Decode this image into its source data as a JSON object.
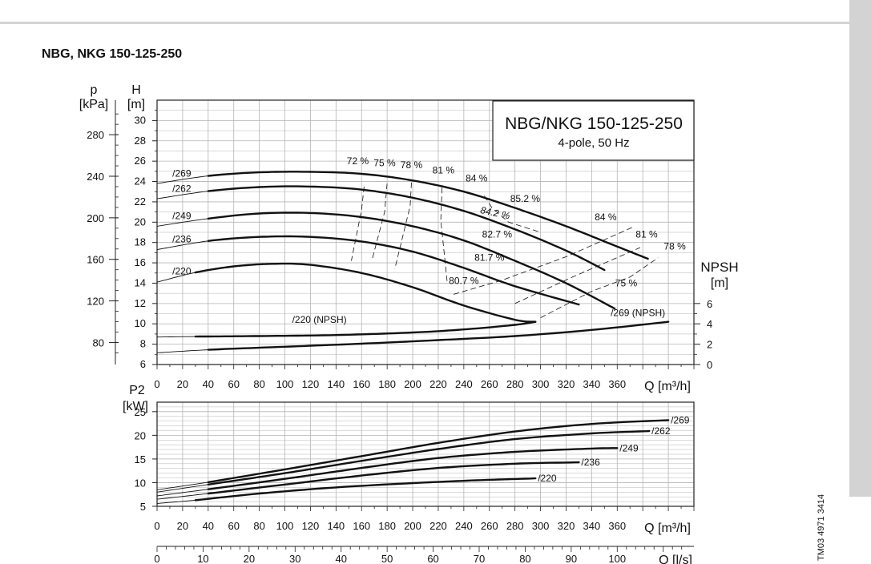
{
  "page": {
    "title": "NBG, NKG 150-125-250",
    "doc_code": "TM03 4971 3414",
    "box_title": "NBG/NKG 150-125-250",
    "box_subtitle": "4-pole, 50 Hz"
  },
  "colors": {
    "curve": "#111111",
    "grid": "#b5b5b5",
    "frame": "#222222",
    "background": "#ffffff",
    "chrome": "#d3d3d3"
  },
  "chart_data": [
    {
      "id": "head",
      "type": "line",
      "xlabel": "Q [m³/h]",
      "xlim": [
        0,
        420
      ],
      "x_ticks": [
        0,
        20,
        40,
        60,
        80,
        100,
        120,
        140,
        160,
        180,
        200,
        220,
        240,
        260,
        280,
        300,
        320,
        340,
        360
      ],
      "ylabel": "H",
      "ylabel_unit": "[m]",
      "ylim": [
        6,
        32
      ],
      "y_ticks": [
        6,
        8,
        10,
        12,
        14,
        16,
        18,
        20,
        22,
        24,
        26,
        28,
        30
      ],
      "p_axis": {
        "label": "p",
        "unit": "[kPa]",
        "ticks": [
          80,
          120,
          160,
          200,
          240,
          280
        ],
        "kpa_per_m": 9.79
      },
      "npsh_axis": {
        "label": "NPSH",
        "unit": "[m]",
        "ticks": [
          0,
          2,
          4,
          6
        ],
        "offset_m": 6
      },
      "grid": true,
      "series": [
        {
          "name": "/269",
          "x": [
            0,
            40,
            80,
            120,
            160,
            200,
            240,
            280,
            320,
            360,
            384
          ],
          "y": [
            23.8,
            24.55,
            24.9,
            24.95,
            24.75,
            24.1,
            23.0,
            21.4,
            19.6,
            17.6,
            16.4
          ],
          "thin_until": 40
        },
        {
          "name": "/262",
          "x": [
            0,
            40,
            80,
            120,
            160,
            200,
            240,
            280,
            320,
            350
          ],
          "y": [
            22.3,
            23.05,
            23.45,
            23.5,
            23.2,
            22.4,
            21.1,
            19.3,
            17.2,
            15.3
          ],
          "thin_until": 40
        },
        {
          "name": "/249",
          "x": [
            0,
            40,
            80,
            120,
            160,
            200,
            240,
            280,
            320,
            358
          ],
          "y": [
            19.6,
            20.35,
            20.85,
            20.9,
            20.5,
            19.6,
            18.2,
            16.2,
            14.0,
            11.5
          ],
          "thin_until": 40
        },
        {
          "name": "/236",
          "x": [
            0,
            40,
            80,
            120,
            160,
            200,
            240,
            280,
            330
          ],
          "y": [
            17.3,
            18.15,
            18.55,
            18.55,
            18.1,
            17.1,
            15.5,
            13.7,
            11.9
          ],
          "thin_until": 40
        },
        {
          "name": "/220",
          "x": [
            0,
            30,
            60,
            90,
            120,
            160,
            200,
            240,
            280,
            296
          ],
          "y": [
            14.1,
            15.05,
            15.65,
            15.9,
            15.8,
            15.0,
            13.6,
            11.8,
            10.4,
            10.2
          ],
          "thin_until": 30
        },
        {
          "name": "/220 (NPSH)",
          "x": [
            0,
            30,
            80,
            140,
            200,
            240,
            280,
            296
          ],
          "y": [
            8.7,
            8.75,
            8.8,
            8.9,
            9.15,
            9.45,
            9.9,
            10.2
          ],
          "thin_until": 30,
          "label_at": [
            127,
            10.1
          ]
        },
        {
          "name": "/269 (NPSH)",
          "x": [
            0,
            40,
            100,
            160,
            220,
            280,
            340,
            400
          ],
          "y": [
            7.15,
            7.45,
            7.75,
            8.05,
            8.4,
            8.8,
            9.4,
            10.2
          ],
          "thin_until": 40
        }
      ],
      "efficiency_labels": [
        {
          "text": "72 %",
          "x": 157,
          "y": 25.7
        },
        {
          "text": "75 %",
          "x": 178,
          "y": 25.5
        },
        {
          "text": "78 %",
          "x": 199,
          "y": 25.3
        },
        {
          "text": "81 %",
          "x": 224,
          "y": 24.8
        },
        {
          "text": "84 %",
          "x": 250,
          "y": 24.0
        },
        {
          "text": "85.2 %",
          "x": 288,
          "y": 22.0
        },
        {
          "text": "84.2 %",
          "x": 264,
          "y": 20.6
        },
        {
          "text": "84 %",
          "x": 351,
          "y": 20.2
        },
        {
          "text": "82.7 %",
          "x": 266,
          "y": 18.5
        },
        {
          "text": "81 %",
          "x": 383,
          "y": 18.5
        },
        {
          "text": "78 %",
          "x": 405,
          "y": 17.3
        },
        {
          "text": "81.7 %",
          "x": 260,
          "y": 16.2
        },
        {
          "text": "80.7 %",
          "x": 240,
          "y": 13.9
        },
        {
          "text": "75 %",
          "x": 367,
          "y": 13.7
        }
      ]
    },
    {
      "id": "power",
      "type": "line",
      "xlabel": "Q [m³/h]",
      "xlim": [
        0,
        420
      ],
      "x_ticks": [
        0,
        20,
        40,
        60,
        80,
        100,
        120,
        140,
        160,
        180,
        200,
        220,
        240,
        260,
        280,
        300,
        320,
        340,
        360
      ],
      "ylabel": "P2",
      "ylabel_unit": "[kW]",
      "ylim": [
        5,
        27
      ],
      "y_ticks": [
        5,
        10,
        15,
        20,
        25
      ],
      "grid": true,
      "series": [
        {
          "name": "/269",
          "x": [
            0,
            40,
            100,
            160,
            220,
            280,
            340,
            400
          ],
          "y": [
            8.5,
            10.1,
            12.8,
            15.6,
            18.4,
            20.8,
            22.4,
            23.2
          ],
          "thin_until": 40
        },
        {
          "name": "/262",
          "x": [
            0,
            40,
            100,
            160,
            220,
            280,
            340,
            385
          ],
          "y": [
            8.0,
            9.6,
            12.0,
            14.6,
            17.1,
            19.2,
            20.4,
            20.9
          ],
          "thin_until": 40
        },
        {
          "name": "/249",
          "x": [
            0,
            40,
            100,
            160,
            220,
            280,
            340,
            360
          ],
          "y": [
            7.2,
            8.6,
            10.8,
            13.1,
            15.2,
            16.5,
            17.2,
            17.3
          ],
          "thin_until": 40
        },
        {
          "name": "/236",
          "x": [
            0,
            40,
            100,
            160,
            220,
            280,
            330
          ],
          "y": [
            6.5,
            7.7,
            9.6,
            11.5,
            13.1,
            14.0,
            14.3
          ],
          "thin_until": 40
        },
        {
          "name": "/220",
          "x": [
            0,
            30,
            80,
            140,
            200,
            250,
            296
          ],
          "y": [
            5.6,
            6.3,
            7.7,
            9.0,
            9.9,
            10.5,
            10.9
          ],
          "thin_until": 30
        }
      ],
      "lps_axis": {
        "label": "Q [l/s]",
        "ticks": [
          0,
          10,
          20,
          30,
          40,
          50,
          60,
          70,
          80,
          90,
          100
        ],
        "m3h_per_lps": 3.6
      }
    }
  ]
}
